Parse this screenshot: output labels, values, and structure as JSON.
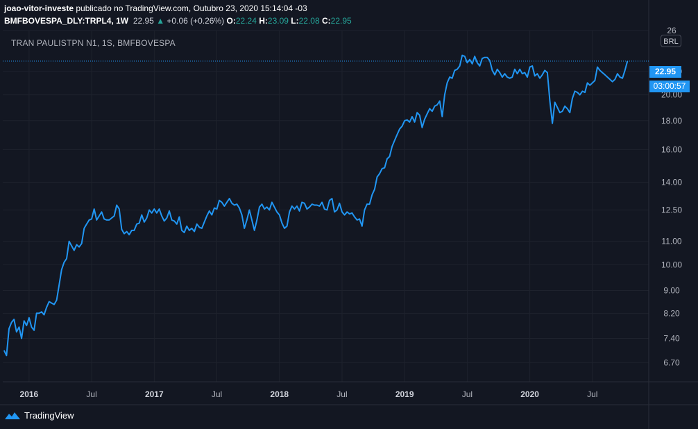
{
  "header": {
    "author": "joao-vitor-investe",
    "published": " publicado no TradingView.com, Outubro 23, 2020 15:14:04 -03"
  },
  "quote": {
    "symbol": "BMFBOVESPA_DLY:TRPL4, 1W",
    "last": "22.95",
    "change": "+0.06 (+0.26%)",
    "o_label": "O:",
    "o_value": "22.24",
    "h_label": "H:",
    "h_value": "23.09",
    "l_label": "L:",
    "l_value": "22.08",
    "c_label": "C:",
    "c_value": "22.95"
  },
  "symbol_title": "TRAN PAULISTPN N1, 1S, BMFBOVESPA",
  "currency": "BRL",
  "last_price_label": "22.95",
  "countdown": "03:00:57",
  "brand": "TradingView",
  "colors": {
    "background": "#131722",
    "line": "#2196f3",
    "up": "#26a69a",
    "grid": "#1e222d",
    "text": "#b2b5be"
  },
  "chart_data": {
    "type": "line",
    "title": "TRAN PAULISTPN N1, 1S, BMFBOVESPA",
    "y_scale": "log",
    "ylim": [
      6.2,
      26
    ],
    "y_ticks": [
      {
        "value": 26,
        "label": "26"
      },
      {
        "value": 22,
        "label": "22.00"
      },
      {
        "value": 20,
        "label": "20.00"
      },
      {
        "value": 18,
        "label": "18.00"
      },
      {
        "value": 16,
        "label": "16.00"
      },
      {
        "value": 14,
        "label": "14.00"
      },
      {
        "value": 12.5,
        "label": "12.50"
      },
      {
        "value": 11,
        "label": "11.00"
      },
      {
        "value": 10,
        "label": "10.00"
      },
      {
        "value": 9,
        "label": "9.00"
      },
      {
        "value": 8.2,
        "label": "8.20"
      },
      {
        "value": 7.4,
        "label": "7.40"
      },
      {
        "value": 6.7,
        "label": "6.70"
      }
    ],
    "x_ticks": [
      {
        "t": 2016.0,
        "label": "2016",
        "bold": true
      },
      {
        "t": 2016.5,
        "label": "Jul",
        "bold": false
      },
      {
        "t": 2017.0,
        "label": "2017",
        "bold": true
      },
      {
        "t": 2017.5,
        "label": "Jul",
        "bold": false
      },
      {
        "t": 2018.0,
        "label": "2018",
        "bold": true
      },
      {
        "t": 2018.5,
        "label": "Jul",
        "bold": false
      },
      {
        "t": 2019.0,
        "label": "2019",
        "bold": true
      },
      {
        "t": 2019.5,
        "label": "Jul",
        "bold": false
      },
      {
        "t": 2020.0,
        "label": "2020",
        "bold": true
      },
      {
        "t": 2020.5,
        "label": "Jul",
        "bold": false
      }
    ],
    "xlim": [
      2015.79,
      2020.95
    ],
    "last_value": 22.95,
    "series": [
      {
        "values": [
          [
            2015.8,
            7.05
          ],
          [
            2015.82,
            6.9
          ],
          [
            2015.84,
            7.7
          ],
          [
            2015.86,
            7.9
          ],
          [
            2015.88,
            8.0
          ],
          [
            2015.9,
            7.6
          ],
          [
            2015.92,
            7.75
          ],
          [
            2015.94,
            7.4
          ],
          [
            2015.96,
            7.95
          ],
          [
            2015.98,
            7.8
          ],
          [
            2016.0,
            8.05
          ],
          [
            2016.02,
            7.75
          ],
          [
            2016.04,
            7.65
          ],
          [
            2016.06,
            8.2
          ],
          [
            2016.08,
            8.2
          ],
          [
            2016.1,
            8.25
          ],
          [
            2016.12,
            8.15
          ],
          [
            2016.14,
            8.4
          ],
          [
            2016.16,
            8.6
          ],
          [
            2016.18,
            8.55
          ],
          [
            2016.2,
            8.5
          ],
          [
            2016.22,
            8.65
          ],
          [
            2016.24,
            9.2
          ],
          [
            2016.26,
            9.8
          ],
          [
            2016.28,
            10.1
          ],
          [
            2016.3,
            10.25
          ],
          [
            2016.32,
            11.0
          ],
          [
            2016.34,
            10.8
          ],
          [
            2016.36,
            10.6
          ],
          [
            2016.38,
            10.85
          ],
          [
            2016.4,
            10.75
          ],
          [
            2016.42,
            10.9
          ],
          [
            2016.44,
            11.6
          ],
          [
            2016.46,
            11.8
          ],
          [
            2016.48,
            12.0
          ],
          [
            2016.5,
            12.05
          ],
          [
            2016.52,
            12.55
          ],
          [
            2016.54,
            12.0
          ],
          [
            2016.56,
            12.2
          ],
          [
            2016.58,
            12.4
          ],
          [
            2016.6,
            12.05
          ],
          [
            2016.62,
            12.0
          ],
          [
            2016.64,
            12.0
          ],
          [
            2016.66,
            12.1
          ],
          [
            2016.68,
            12.2
          ],
          [
            2016.7,
            12.75
          ],
          [
            2016.72,
            12.55
          ],
          [
            2016.74,
            11.55
          ],
          [
            2016.76,
            11.35
          ],
          [
            2016.78,
            11.45
          ],
          [
            2016.8,
            11.3
          ],
          [
            2016.82,
            11.5
          ],
          [
            2016.84,
            11.5
          ],
          [
            2016.86,
            11.8
          ],
          [
            2016.88,
            11.85
          ],
          [
            2016.9,
            12.25
          ],
          [
            2016.92,
            11.9
          ],
          [
            2016.94,
            12.1
          ],
          [
            2016.96,
            12.5
          ],
          [
            2016.98,
            12.35
          ],
          [
            2017.0,
            12.55
          ],
          [
            2017.02,
            12.35
          ],
          [
            2017.04,
            12.55
          ],
          [
            2017.06,
            12.2
          ],
          [
            2017.08,
            11.95
          ],
          [
            2017.1,
            12.1
          ],
          [
            2017.12,
            12.45
          ],
          [
            2017.14,
            12.0
          ],
          [
            2017.16,
            11.95
          ],
          [
            2017.18,
            11.8
          ],
          [
            2017.2,
            12.15
          ],
          [
            2017.22,
            11.5
          ],
          [
            2017.24,
            11.4
          ],
          [
            2017.26,
            11.7
          ],
          [
            2017.28,
            11.5
          ],
          [
            2017.3,
            11.6
          ],
          [
            2017.32,
            11.45
          ],
          [
            2017.34,
            11.8
          ],
          [
            2017.36,
            11.65
          ],
          [
            2017.38,
            11.6
          ],
          [
            2017.4,
            11.9
          ],
          [
            2017.42,
            12.2
          ],
          [
            2017.44,
            12.45
          ],
          [
            2017.46,
            12.25
          ],
          [
            2017.48,
            12.6
          ],
          [
            2017.5,
            12.55
          ],
          [
            2017.52,
            13.0
          ],
          [
            2017.54,
            12.9
          ],
          [
            2017.56,
            12.7
          ],
          [
            2017.58,
            12.9
          ],
          [
            2017.6,
            13.1
          ],
          [
            2017.62,
            12.85
          ],
          [
            2017.64,
            12.75
          ],
          [
            2017.66,
            12.8
          ],
          [
            2017.68,
            12.6
          ],
          [
            2017.7,
            12.25
          ],
          [
            2017.72,
            11.6
          ],
          [
            2017.74,
            12.0
          ],
          [
            2017.76,
            12.5
          ],
          [
            2017.78,
            12.0
          ],
          [
            2017.8,
            11.5
          ],
          [
            2017.82,
            12.0
          ],
          [
            2017.84,
            12.65
          ],
          [
            2017.86,
            12.8
          ],
          [
            2017.88,
            12.55
          ],
          [
            2017.9,
            12.65
          ],
          [
            2017.92,
            12.5
          ],
          [
            2017.94,
            12.9
          ],
          [
            2017.96,
            12.65
          ],
          [
            2017.98,
            12.4
          ],
          [
            2018.0,
            12.25
          ],
          [
            2018.02,
            11.85
          ],
          [
            2018.04,
            11.6
          ],
          [
            2018.06,
            11.7
          ],
          [
            2018.08,
            12.4
          ],
          [
            2018.1,
            12.7
          ],
          [
            2018.12,
            12.55
          ],
          [
            2018.14,
            12.7
          ],
          [
            2018.16,
            12.45
          ],
          [
            2018.18,
            12.9
          ],
          [
            2018.2,
            12.85
          ],
          [
            2018.22,
            12.55
          ],
          [
            2018.24,
            12.65
          ],
          [
            2018.26,
            12.8
          ],
          [
            2018.28,
            12.75
          ],
          [
            2018.3,
            12.75
          ],
          [
            2018.32,
            12.7
          ],
          [
            2018.34,
            12.9
          ],
          [
            2018.36,
            12.55
          ],
          [
            2018.38,
            12.5
          ],
          [
            2018.4,
            13.0
          ],
          [
            2018.42,
            13.1
          ],
          [
            2018.44,
            12.4
          ],
          [
            2018.46,
            12.5
          ],
          [
            2018.48,
            12.85
          ],
          [
            2018.5,
            12.4
          ],
          [
            2018.52,
            12.25
          ],
          [
            2018.54,
            12.4
          ],
          [
            2018.56,
            12.3
          ],
          [
            2018.58,
            12.35
          ],
          [
            2018.6,
            12.15
          ],
          [
            2018.62,
            12.0
          ],
          [
            2018.64,
            12.05
          ],
          [
            2018.66,
            11.7
          ],
          [
            2018.68,
            12.5
          ],
          [
            2018.7,
            12.8
          ],
          [
            2018.72,
            12.8
          ],
          [
            2018.74,
            13.3
          ],
          [
            2018.76,
            13.6
          ],
          [
            2018.78,
            14.3
          ],
          [
            2018.8,
            14.5
          ],
          [
            2018.82,
            14.8
          ],
          [
            2018.84,
            14.85
          ],
          [
            2018.86,
            15.4
          ],
          [
            2018.88,
            15.55
          ],
          [
            2018.9,
            16.2
          ],
          [
            2018.92,
            16.6
          ],
          [
            2018.94,
            17.0
          ],
          [
            2018.96,
            17.4
          ],
          [
            2018.98,
            17.6
          ],
          [
            2019.0,
            18.0
          ],
          [
            2019.02,
            18.05
          ],
          [
            2019.04,
            17.9
          ],
          [
            2019.06,
            18.3
          ],
          [
            2019.08,
            17.9
          ],
          [
            2019.1,
            18.6
          ],
          [
            2019.12,
            18.4
          ],
          [
            2019.14,
            17.5
          ],
          [
            2019.16,
            18.1
          ],
          [
            2019.18,
            18.5
          ],
          [
            2019.2,
            18.9
          ],
          [
            2019.22,
            18.7
          ],
          [
            2019.24,
            19.1
          ],
          [
            2019.26,
            19.2
          ],
          [
            2019.28,
            19.5
          ],
          [
            2019.3,
            18.3
          ],
          [
            2019.32,
            20.0
          ],
          [
            2019.34,
            21.0
          ],
          [
            2019.36,
            21.5
          ],
          [
            2019.38,
            21.4
          ],
          [
            2019.4,
            22.1
          ],
          [
            2019.42,
            22.2
          ],
          [
            2019.44,
            22.5
          ],
          [
            2019.46,
            23.5
          ],
          [
            2019.48,
            23.4
          ],
          [
            2019.5,
            22.8
          ],
          [
            2019.52,
            23.1
          ],
          [
            2019.54,
            22.7
          ],
          [
            2019.56,
            23.4
          ],
          [
            2019.58,
            22.8
          ],
          [
            2019.6,
            22.5
          ],
          [
            2019.62,
            23.2
          ],
          [
            2019.64,
            23.3
          ],
          [
            2019.66,
            23.3
          ],
          [
            2019.68,
            23.0
          ],
          [
            2019.7,
            22.1
          ],
          [
            2019.72,
            21.7
          ],
          [
            2019.74,
            22.2
          ],
          [
            2019.76,
            21.9
          ],
          [
            2019.78,
            21.5
          ],
          [
            2019.8,
            21.8
          ],
          [
            2019.82,
            21.5
          ],
          [
            2019.84,
            21.4
          ],
          [
            2019.86,
            21.5
          ],
          [
            2019.88,
            22.2
          ],
          [
            2019.9,
            21.8
          ],
          [
            2019.92,
            22.2
          ],
          [
            2019.94,
            21.8
          ],
          [
            2019.96,
            21.9
          ],
          [
            2019.98,
            21.5
          ],
          [
            2020.0,
            22.4
          ],
          [
            2020.02,
            22.5
          ],
          [
            2020.04,
            21.6
          ],
          [
            2020.06,
            21.8
          ],
          [
            2020.08,
            21.4
          ],
          [
            2020.1,
            21.7
          ],
          [
            2020.12,
            22.1
          ],
          [
            2020.14,
            21.9
          ],
          [
            2020.16,
            19.5
          ],
          [
            2020.18,
            17.8
          ],
          [
            2020.2,
            19.4
          ],
          [
            2020.22,
            19.0
          ],
          [
            2020.24,
            18.6
          ],
          [
            2020.26,
            18.7
          ],
          [
            2020.28,
            19.1
          ],
          [
            2020.3,
            18.9
          ],
          [
            2020.32,
            18.6
          ],
          [
            2020.34,
            19.7
          ],
          [
            2020.36,
            20.3
          ],
          [
            2020.38,
            20.2
          ],
          [
            2020.4,
            20.0
          ],
          [
            2020.42,
            20.3
          ],
          [
            2020.44,
            20.2
          ],
          [
            2020.46,
            21.0
          ],
          [
            2020.48,
            20.8
          ],
          [
            2020.5,
            21.0
          ],
          [
            2020.52,
            21.2
          ],
          [
            2020.54,
            22.4
          ],
          [
            2020.56,
            22.1
          ],
          [
            2020.58,
            21.9
          ],
          [
            2020.6,
            21.7
          ],
          [
            2020.62,
            21.5
          ],
          [
            2020.64,
            21.3
          ],
          [
            2020.66,
            21.1
          ],
          [
            2020.68,
            21.3
          ],
          [
            2020.7,
            21.8
          ],
          [
            2020.72,
            21.5
          ],
          [
            2020.74,
            21.4
          ],
          [
            2020.76,
            22.1
          ],
          [
            2020.78,
            22.95
          ]
        ]
      }
    ]
  }
}
